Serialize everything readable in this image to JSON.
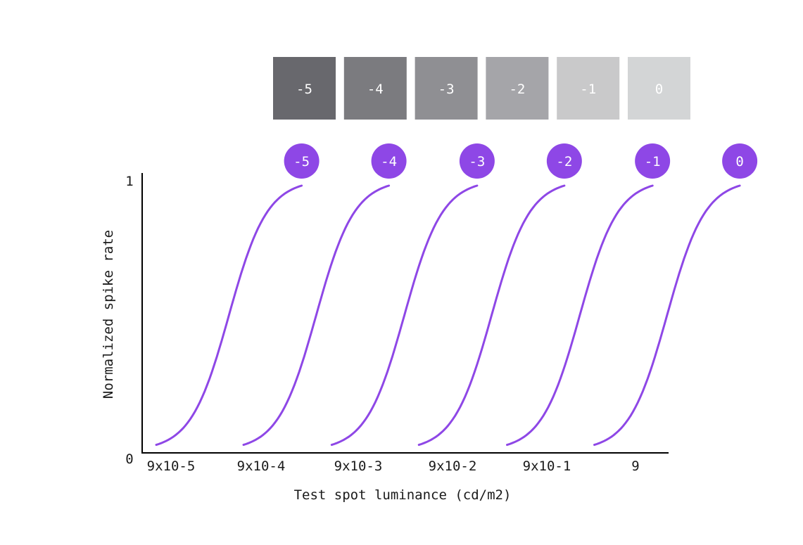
{
  "chart_data": {
    "type": "line",
    "xlabel": "Test spot luminance (cd/m2)",
    "ylabel": "Normalized spike rate",
    "ylim": [
      0,
      1
    ],
    "y_ticks": [
      "0",
      "1"
    ],
    "x_ticks": [
      "9x10-5",
      "9x10-4",
      "9x10-3",
      "9x10-2",
      "9x10-1",
      "9"
    ],
    "grid": false,
    "adaptation_levels": [
      {
        "label": "-5",
        "swatch_color": "#68686d"
      },
      {
        "label": "-4",
        "swatch_color": "#7b7b7f"
      },
      {
        "label": "-3",
        "swatch_color": "#8f8f93"
      },
      {
        "label": "-2",
        "swatch_color": "#a5a5a9"
      },
      {
        "label": "-1",
        "swatch_color": "#c9c9ca"
      },
      {
        "label": "0",
        "swatch_color": "#d3d5d6"
      }
    ],
    "series": [
      {
        "label": "-5",
        "x_start": 0.15,
        "x_end": 1.7
      },
      {
        "label": "-4",
        "x_start": 1.08,
        "x_end": 2.63
      },
      {
        "label": "-3",
        "x_start": 2.02,
        "x_end": 3.57
      },
      {
        "label": "-2",
        "x_start": 2.95,
        "x_end": 4.5
      },
      {
        "label": "-1",
        "x_start": 3.89,
        "x_end": 5.44
      },
      {
        "label": "0",
        "x_start": 4.82,
        "x_end": 6.37
      }
    ],
    "colors": {
      "curve": "#8e47e6",
      "badge": "#8e47e6",
      "badge_text": "#ffffff",
      "swatch_text": "#ffffff",
      "axis": "#000000",
      "text": "#1a1a1a"
    }
  }
}
